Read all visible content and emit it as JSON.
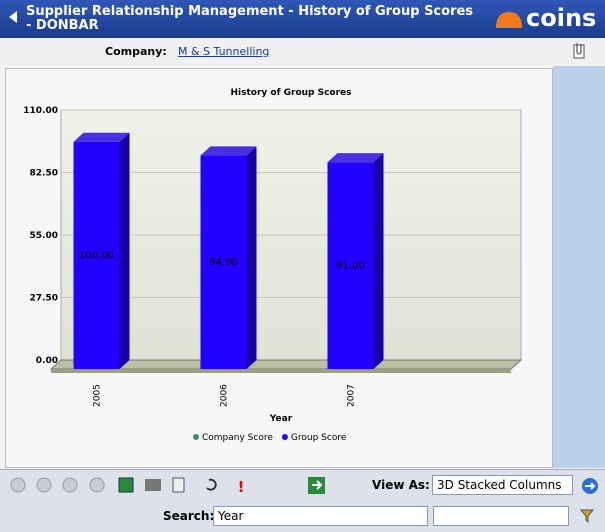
{
  "header": {
    "title": "Supplier Relationship Management - History of Group Scores - DONBAR",
    "logo": "coins"
  },
  "company": {
    "label": "Company:",
    "value": "M & S Tunnelling"
  },
  "chart_data": {
    "type": "bar",
    "title": "History of Group Scores",
    "x_label": "Year",
    "categories": [
      "2005",
      "2006",
      "2007"
    ],
    "series": [
      {
        "name": "Company Score",
        "color": "#3c8c6c",
        "values": [
          null,
          null,
          null
        ]
      },
      {
        "name": "Group Score",
        "color": "#2200ff",
        "values": [
          100,
          94,
          91
        ],
        "value_labels": [
          "100.00",
          "94.00",
          "91.00"
        ]
      }
    ],
    "ylim": [
      0,
      110
    ],
    "yticks": [
      {
        "value": 0,
        "label": "0.00"
      },
      {
        "value": 27.5,
        "label": "27.50"
      },
      {
        "value": 55,
        "label": "55.00"
      },
      {
        "value": 82.5,
        "label": "82.50"
      },
      {
        "value": 110,
        "label": "110.00"
      }
    ],
    "grid": true
  },
  "toolbar": {
    "view_as_label": "View As:",
    "view_as_value": "3D Stacked Columns",
    "search_label": "Search:",
    "search_value": "Year"
  }
}
